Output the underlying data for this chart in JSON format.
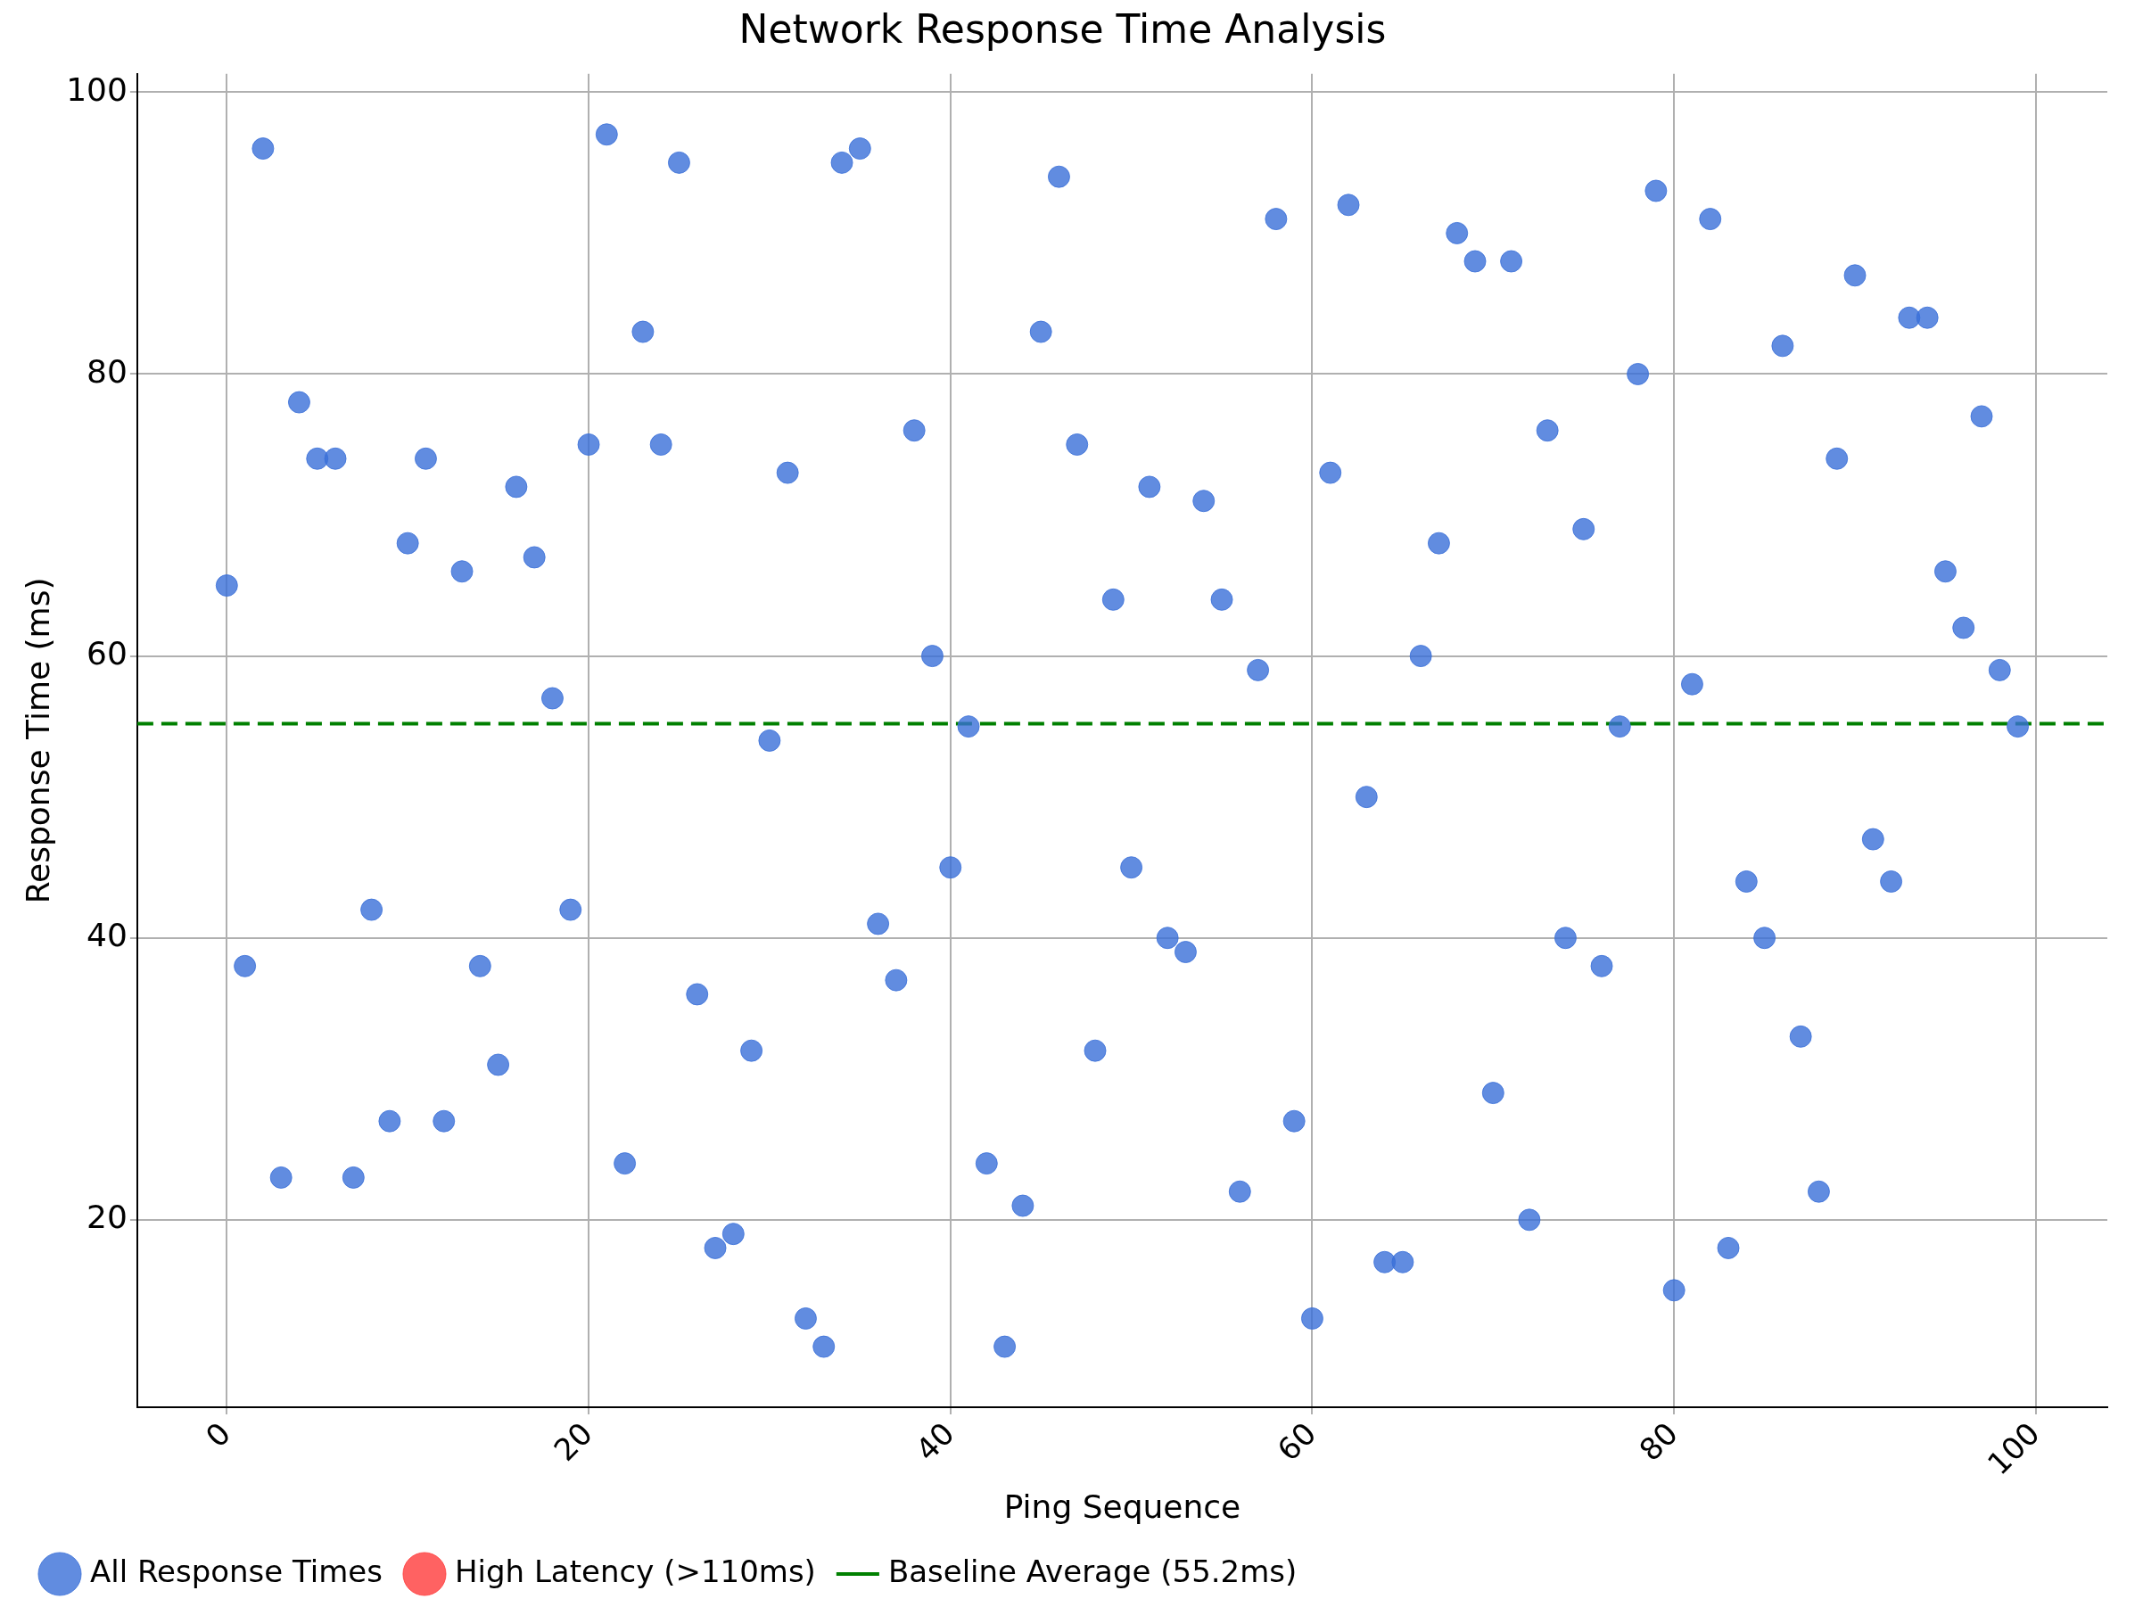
{
  "chart_data": {
    "type": "scatter",
    "title": "Network Response Time Analysis",
    "xlabel": "Ping Sequence",
    "ylabel": "Response Time (ms)",
    "xlim": [
      -4.95,
      103.95
    ],
    "xticks": [
      0,
      20,
      40,
      60,
      80,
      100
    ],
    "ylim": [
      6.7,
      101.3
    ],
    "yticks": [
      20,
      40,
      60,
      80,
      100
    ],
    "grid": true,
    "legend": "bottom left",
    "marker": "circle",
    "series": [
      {
        "name": "All Response Times",
        "color": "#3a6fd8",
        "x": [
          0,
          1,
          2,
          3,
          4,
          5,
          6,
          7,
          8,
          9,
          10,
          11,
          12,
          13,
          14,
          15,
          16,
          17,
          18,
          19,
          20,
          21,
          22,
          23,
          24,
          25,
          26,
          27,
          28,
          29,
          30,
          31,
          32,
          33,
          34,
          35,
          36,
          37,
          38,
          39,
          40,
          41,
          42,
          43,
          44,
          45,
          46,
          47,
          48,
          49,
          50,
          51,
          52,
          53,
          54,
          55,
          56,
          57,
          58,
          59,
          60,
          61,
          62,
          63,
          64,
          65,
          66,
          67,
          68,
          69,
          70,
          71,
          72,
          73,
          74,
          75,
          76,
          77,
          78,
          79,
          80,
          81,
          82,
          83,
          84,
          85,
          86,
          87,
          88,
          89,
          90,
          91,
          92,
          93,
          94,
          95,
          96,
          97,
          98,
          99
        ],
        "values": [
          65,
          38,
          96,
          23,
          78,
          74,
          74,
          23,
          42,
          27,
          68,
          74,
          27,
          66,
          38,
          31,
          72,
          67,
          57,
          42,
          75,
          97,
          24,
          83,
          75,
          95,
          36,
          18,
          19,
          32,
          54,
          73,
          13,
          11,
          95,
          96,
          41,
          37,
          76,
          60,
          45,
          55,
          24,
          11,
          21,
          83,
          94,
          75,
          32,
          64,
          45,
          72,
          40,
          39,
          71,
          64,
          22,
          59,
          91,
          27,
          13,
          73,
          92,
          50,
          17,
          17,
          60,
          68,
          90,
          88,
          29,
          88,
          20,
          76,
          40,
          69,
          38,
          55,
          80,
          93,
          15,
          58,
          91,
          18,
          44,
          40,
          82,
          33,
          22,
          74,
          87,
          47,
          44,
          84,
          84,
          66,
          62,
          77,
          59,
          55
        ]
      },
      {
        "name": "High Latency (>110ms)",
        "color": "#ff3b3b"
      }
    ],
    "ref_lines": [
      {
        "axis": "y",
        "value": 55.2,
        "label": "Baseline Average (55.2ms)",
        "color": "#008000",
        "line_style": "dashed"
      }
    ]
  }
}
